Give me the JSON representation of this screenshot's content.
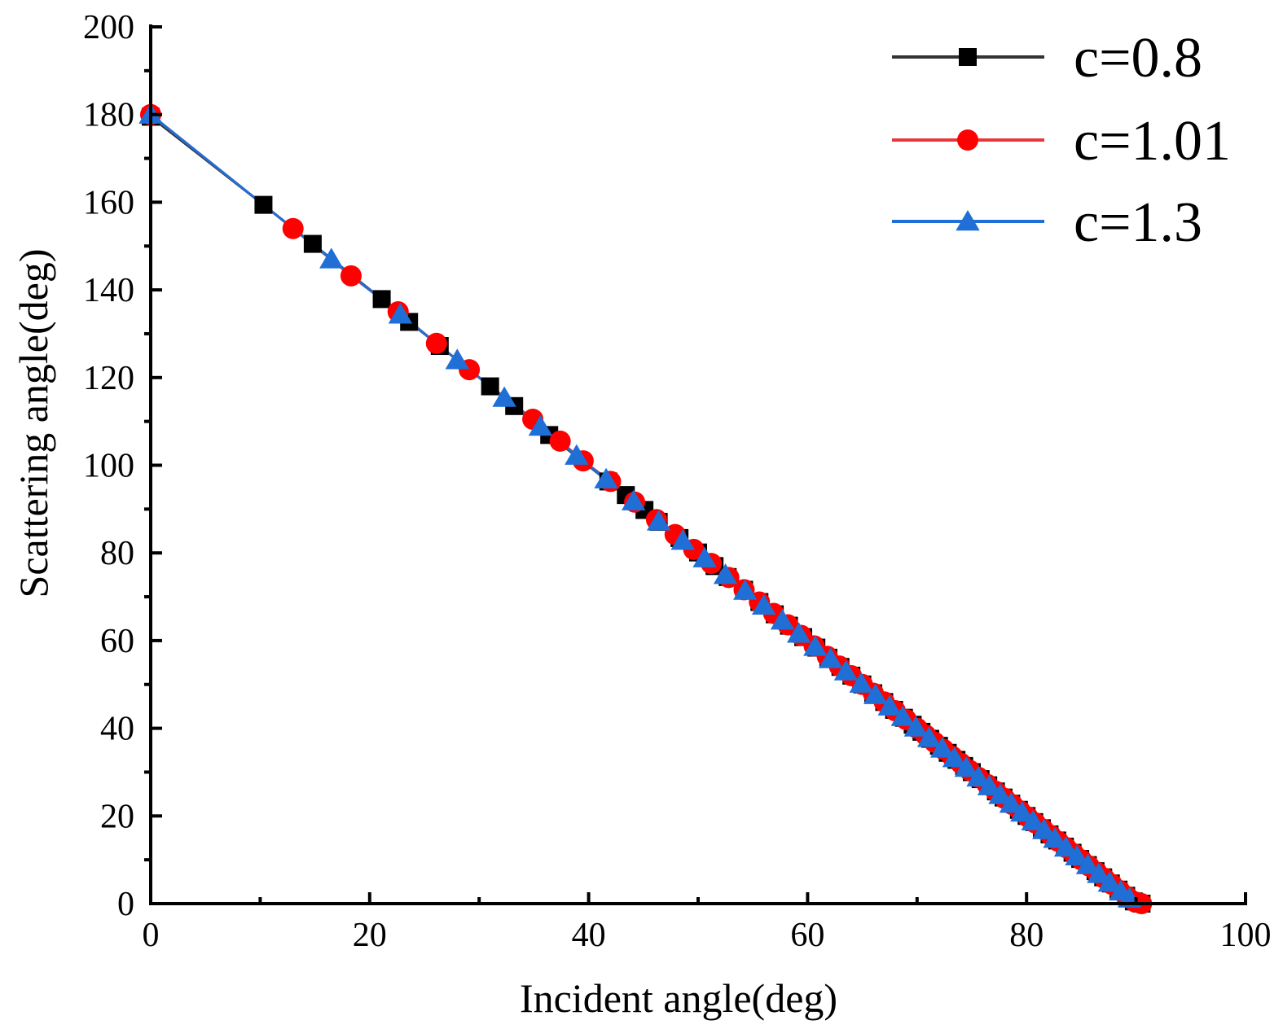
{
  "chart_data": {
    "type": "line",
    "xlabel": "Incident angle(deg)",
    "ylabel": "Scattering angle(deg)",
    "xlim": [
      0,
      100
    ],
    "ylim": [
      0,
      200
    ],
    "x_ticks": [
      "0",
      "20",
      "40",
      "60",
      "80",
      "100"
    ],
    "y_ticks": [
      "0",
      "20",
      "40",
      "60",
      "80",
      "100",
      "120",
      "140",
      "160",
      "180",
      "200"
    ],
    "grid": false,
    "legend_position": "top-right",
    "series": [
      {
        "name": "c=0.8",
        "color": "#000000",
        "line_color": "#333333",
        "marker": "square",
        "x": [
          0,
          10.3,
          14.8,
          21.1,
          23.6,
          26.4,
          31.0,
          33.2,
          36.4,
          41.8,
          43.4,
          45.1,
          46.4,
          48.3,
          50.0,
          51.5,
          52.7,
          54.2,
          55.6,
          57.0,
          58.3,
          59.6,
          60.8,
          61.9,
          63.0,
          64.0,
          65.0,
          66.0,
          67.0,
          67.9,
          68.8,
          69.6,
          70.4,
          71.2,
          72.0,
          72.8,
          73.6,
          74.3,
          75.0,
          75.8,
          76.5,
          77.2,
          77.9,
          78.6,
          79.3,
          80.0,
          80.7,
          81.4,
          82.1,
          82.8,
          83.5,
          84.2,
          84.9,
          85.6,
          86.3,
          87.0,
          87.7,
          88.4,
          89.1,
          89.8,
          90.5
        ],
        "y": [
          179.5,
          159.4,
          150.5,
          137.9,
          132.7,
          127.2,
          118.0,
          113.5,
          106.9,
          96.3,
          93.2,
          89.8,
          87.1,
          83.4,
          80.1,
          77.0,
          74.5,
          71.6,
          68.8,
          66.0,
          63.4,
          60.8,
          58.4,
          56.1,
          54.0,
          52.0,
          50.0,
          48.0,
          46.0,
          44.2,
          42.4,
          40.8,
          39.2,
          37.6,
          36.0,
          34.4,
          32.8,
          31.4,
          30.0,
          28.4,
          27.0,
          25.6,
          24.2,
          22.8,
          21.4,
          20.0,
          18.6,
          17.2,
          15.8,
          14.4,
          13.0,
          11.6,
          10.2,
          8.8,
          7.4,
          6.0,
          4.6,
          3.2,
          1.8,
          0.5,
          0
        ]
      },
      {
        "name": "c=1.01",
        "color": "#ff0000",
        "line_color": "#e8373c",
        "marker": "circle",
        "x": [
          0,
          13.0,
          18.3,
          22.6,
          26.1,
          29.1,
          34.9,
          37.4,
          39.5,
          42.0,
          44.2,
          46.2,
          47.9,
          49.6,
          51.2,
          52.8,
          54.2,
          55.6,
          56.9,
          58.2,
          59.4,
          60.6,
          61.8,
          62.9,
          64.0,
          65.0,
          66.0,
          67.0,
          68.0,
          69.0,
          70.0,
          70.8,
          71.6,
          72.4,
          73.2,
          74.0,
          74.8,
          75.6,
          76.4,
          77.2,
          78.0,
          78.7,
          79.4,
          80.1,
          80.8,
          81.5,
          82.2,
          82.9,
          83.6,
          84.3,
          85.0,
          85.7,
          86.4,
          87.1,
          87.8,
          88.5,
          89.2,
          89.9,
          90.5
        ],
        "y": [
          180,
          154.0,
          143.2,
          135.0,
          127.8,
          121.8,
          110.5,
          105.5,
          101.0,
          96.3,
          91.6,
          87.6,
          84.2,
          80.8,
          77.6,
          74.4,
          71.6,
          68.8,
          66.2,
          63.6,
          61.2,
          58.8,
          56.4,
          54.2,
          52.0,
          50.0,
          48.0,
          46.0,
          44.0,
          42.0,
          40.0,
          38.4,
          36.8,
          35.2,
          33.6,
          32.0,
          30.4,
          28.8,
          27.2,
          25.6,
          24.0,
          22.6,
          21.2,
          19.8,
          18.4,
          17.0,
          15.6,
          14.2,
          12.8,
          11.4,
          10.0,
          8.6,
          7.2,
          5.8,
          4.4,
          3.0,
          1.6,
          0.4,
          0
        ]
      },
      {
        "name": "c=1.3",
        "color": "#1f6fd6",
        "line_color": "#1f6fd6",
        "marker": "triangle",
        "x": [
          0,
          16.5,
          22.8,
          28.0,
          32.3,
          35.6,
          38.9,
          41.6,
          44.1,
          46.4,
          48.6,
          50.6,
          52.5,
          54.3,
          56.0,
          57.7,
          59.2,
          60.7,
          62.1,
          63.5,
          64.9,
          66.2,
          67.5,
          68.7,
          69.9,
          71.1,
          72.3,
          73.4,
          74.5,
          75.6,
          76.6,
          77.6,
          78.6,
          79.6,
          80.6,
          81.6,
          82.6,
          83.6,
          84.6,
          85.6,
          86.6,
          87.6,
          88.6,
          89.4
        ],
        "y": [
          180,
          147.0,
          134.4,
          124.0,
          115.4,
          108.8,
          102.2,
          96.8,
          91.8,
          87.2,
          82.8,
          78.8,
          75.0,
          71.4,
          68.0,
          64.6,
          61.6,
          58.6,
          55.8,
          53.0,
          50.2,
          47.6,
          45.0,
          42.6,
          40.2,
          37.8,
          35.4,
          33.2,
          31.0,
          28.8,
          26.8,
          24.8,
          22.8,
          20.8,
          18.8,
          16.8,
          14.8,
          12.8,
          10.8,
          8.8,
          6.8,
          4.8,
          2.8,
          1.2
        ]
      }
    ]
  }
}
